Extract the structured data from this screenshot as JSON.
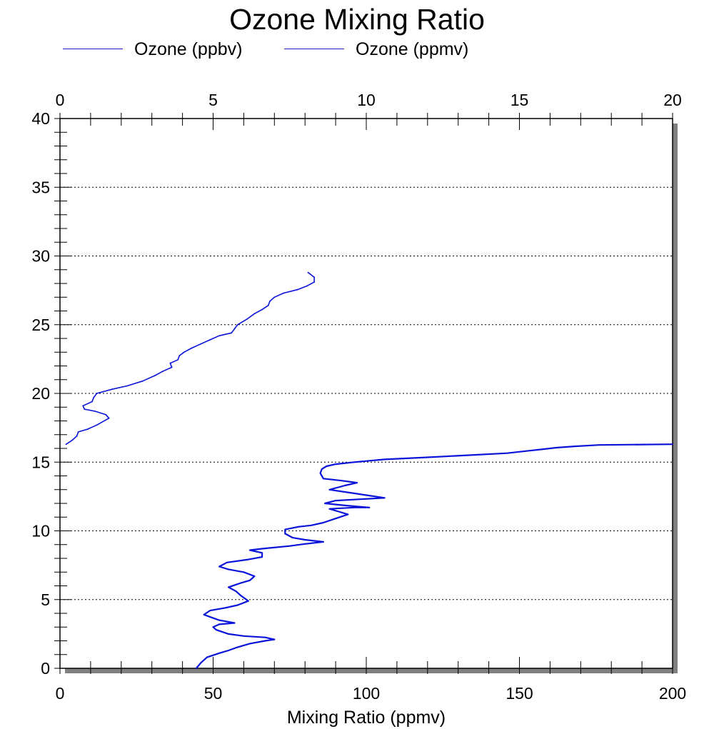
{
  "chart_data": {
    "type": "line",
    "title": "Ozone Mixing Ratio",
    "xlabel": "Mixing Ratio (ppmv)",
    "ylabel": "",
    "legend": {
      "placement": "top-left",
      "entries": [
        "Ozone (ppbv)",
        "Ozone (ppmv)"
      ]
    },
    "grid": {
      "horizontal": true,
      "vertical": false
    },
    "axes": {
      "bottom": {
        "min": 0,
        "max": 200,
        "ticks": [
          "0",
          "50",
          "100",
          "150",
          "200"
        ]
      },
      "top": {
        "min": 0,
        "max": 20,
        "ticks": [
          "0",
          "5",
          "10",
          "15",
          "20"
        ]
      },
      "left": {
        "min": 0,
        "max": 40,
        "ticks": [
          "0",
          "5",
          "10",
          "15",
          "20",
          "25",
          "30",
          "35",
          "40"
        ]
      }
    },
    "colors": {
      "series": "#0a14d8",
      "grid": "#000000"
    },
    "series": [
      {
        "name": "Ozone (ppbv)",
        "axis": "bottom",
        "points": [
          [
            44.5,
            0.0
          ],
          [
            46.0,
            0.4
          ],
          [
            48.0,
            0.8
          ],
          [
            52.0,
            1.1
          ],
          [
            55.0,
            1.3
          ],
          [
            57.5,
            1.5
          ],
          [
            62.0,
            1.8
          ],
          [
            67.0,
            2.0
          ],
          [
            70.0,
            2.1
          ],
          [
            67.0,
            2.25
          ],
          [
            60.0,
            2.35
          ],
          [
            55.0,
            2.5
          ],
          [
            51.0,
            2.8
          ],
          [
            50.0,
            3.0
          ],
          [
            52.0,
            3.2
          ],
          [
            57.0,
            3.3
          ],
          [
            52.0,
            3.5
          ],
          [
            49.5,
            3.7
          ],
          [
            47.0,
            3.9
          ],
          [
            49.0,
            4.2
          ],
          [
            54.0,
            4.4
          ],
          [
            58.0,
            4.6
          ],
          [
            61.5,
            4.9
          ],
          [
            59.0,
            5.3
          ],
          [
            57.5,
            5.6
          ],
          [
            55.0,
            5.9
          ],
          [
            59.0,
            6.2
          ],
          [
            62.0,
            6.4
          ],
          [
            63.5,
            6.7
          ],
          [
            60.0,
            7.0
          ],
          [
            55.0,
            7.2
          ],
          [
            52.0,
            7.4
          ],
          [
            54.5,
            7.7
          ],
          [
            61.0,
            7.9
          ],
          [
            66.0,
            8.1
          ],
          [
            66.0,
            8.4
          ],
          [
            62.0,
            8.6
          ],
          [
            66.0,
            8.7
          ],
          [
            75.0,
            8.9
          ],
          [
            80.0,
            9.05
          ],
          [
            86.0,
            9.2
          ],
          [
            80.0,
            9.35
          ],
          [
            76.0,
            9.5
          ],
          [
            73.5,
            9.8
          ],
          [
            73.5,
            10.1
          ],
          [
            78.0,
            10.3
          ],
          [
            82.0,
            10.4
          ],
          [
            86.0,
            10.6
          ],
          [
            90.0,
            10.9
          ],
          [
            94.0,
            11.2
          ],
          [
            91.0,
            11.4
          ],
          [
            88.0,
            11.6
          ],
          [
            96.0,
            11.7
          ],
          [
            101.0,
            11.7
          ],
          [
            93.0,
            11.85
          ],
          [
            86.5,
            12.0
          ],
          [
            90.0,
            12.2
          ],
          [
            98.0,
            12.3
          ],
          [
            106.0,
            12.4
          ],
          [
            100.0,
            12.6
          ],
          [
            94.0,
            12.8
          ],
          [
            88.0,
            13.0
          ],
          [
            93.0,
            13.3
          ],
          [
            97.0,
            13.5
          ],
          [
            92.0,
            13.65
          ],
          [
            86.0,
            13.8
          ],
          [
            85.0,
            14.2
          ],
          [
            85.5,
            14.5
          ],
          [
            87.0,
            14.7
          ],
          [
            90.0,
            14.85
          ],
          [
            96.0,
            15.0
          ],
          [
            106.0,
            15.2
          ],
          [
            120.0,
            15.35
          ],
          [
            133.0,
            15.5
          ],
          [
            146.0,
            15.65
          ],
          [
            152.0,
            15.8
          ],
          [
            158.0,
            15.95
          ],
          [
            162.0,
            16.05
          ],
          [
            168.0,
            16.15
          ],
          [
            176.0,
            16.25
          ],
          [
            200.0,
            16.3
          ]
        ]
      },
      {
        "name": "Ozone (ppmv)",
        "axis": "top",
        "points": [
          [
            0.2,
            16.3
          ],
          [
            0.4,
            16.6
          ],
          [
            0.55,
            16.9
          ],
          [
            0.6,
            17.2
          ],
          [
            0.9,
            17.4
          ],
          [
            1.2,
            17.7
          ],
          [
            1.6,
            18.2
          ],
          [
            1.5,
            18.45
          ],
          [
            1.15,
            18.7
          ],
          [
            0.8,
            18.85
          ],
          [
            0.75,
            19.1
          ],
          [
            1.05,
            19.4
          ],
          [
            1.1,
            19.7
          ],
          [
            1.2,
            20.0
          ],
          [
            1.7,
            20.3
          ],
          [
            2.2,
            20.55
          ],
          [
            2.7,
            20.9
          ],
          [
            3.1,
            21.3
          ],
          [
            3.35,
            21.6
          ],
          [
            3.65,
            21.9
          ],
          [
            3.6,
            22.2
          ],
          [
            3.85,
            22.45
          ],
          [
            3.9,
            22.75
          ],
          [
            4.05,
            23.0
          ],
          [
            4.3,
            23.3
          ],
          [
            4.6,
            23.6
          ],
          [
            4.9,
            23.9
          ],
          [
            5.2,
            24.2
          ],
          [
            5.6,
            24.4
          ],
          [
            5.7,
            24.7
          ],
          [
            5.8,
            25.0
          ],
          [
            6.1,
            25.4
          ],
          [
            6.35,
            25.8
          ],
          [
            6.6,
            26.1
          ],
          [
            6.8,
            26.4
          ],
          [
            6.85,
            26.7
          ],
          [
            7.0,
            27.0
          ],
          [
            7.3,
            27.3
          ],
          [
            7.75,
            27.55
          ],
          [
            8.05,
            27.8
          ],
          [
            8.3,
            28.1
          ],
          [
            8.3,
            28.45
          ],
          [
            8.1,
            28.8
          ]
        ]
      }
    ]
  }
}
